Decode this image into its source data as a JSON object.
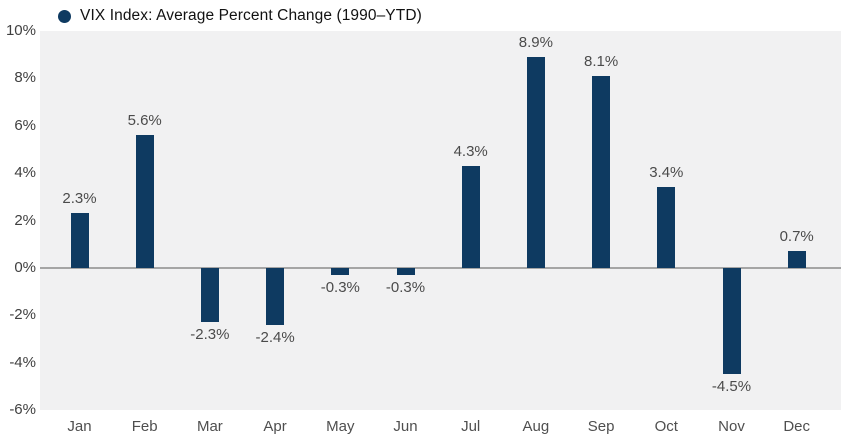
{
  "legend": {
    "label": "VIX Index: Average Percent Change (1990–YTD)"
  },
  "colors": {
    "bar": "#0e3a61",
    "plot_background": "#f1f1f2",
    "zero_line": "#a5a5a5",
    "value_label_text": "#4b4b4b",
    "axis_tick_text": "#404040",
    "month_label_text": "#4f4f4f",
    "legend_text": "#121212",
    "page_background": "#ffffff"
  },
  "chart_data": {
    "type": "bar",
    "title": "VIX Index: Average Percent Change (1990–YTD)",
    "categories": [
      "Jan",
      "Feb",
      "Mar",
      "Apr",
      "May",
      "Jun",
      "Jul",
      "Aug",
      "Sep",
      "Oct",
      "Nov",
      "Dec"
    ],
    "values": [
      2.3,
      5.6,
      -2.3,
      -2.4,
      -0.3,
      -0.3,
      4.3,
      8.9,
      8.1,
      3.4,
      -4.5,
      0.7
    ],
    "value_labels": [
      "2.3%",
      "5.6%",
      "-2.3%",
      "-2.4%",
      "-0.3%",
      "-0.3%",
      "4.3%",
      "8.9%",
      "8.1%",
      "3.4%",
      "-4.5%",
      "0.7%"
    ],
    "xlabel": "",
    "ylabel": "",
    "ylim": [
      -6,
      10
    ],
    "yticks": [
      10,
      8,
      6,
      4,
      2,
      0,
      -2,
      -4,
      -6
    ],
    "ytick_labels": [
      "10%",
      "8%",
      "6%",
      "4%",
      "2%",
      "0%",
      "-2%",
      "-4%",
      "-6%"
    ],
    "grid": false,
    "zero_baseline": true,
    "legend_position": "top-left",
    "series_name": "VIX Index: Average Percent Change (1990–YTD)"
  }
}
